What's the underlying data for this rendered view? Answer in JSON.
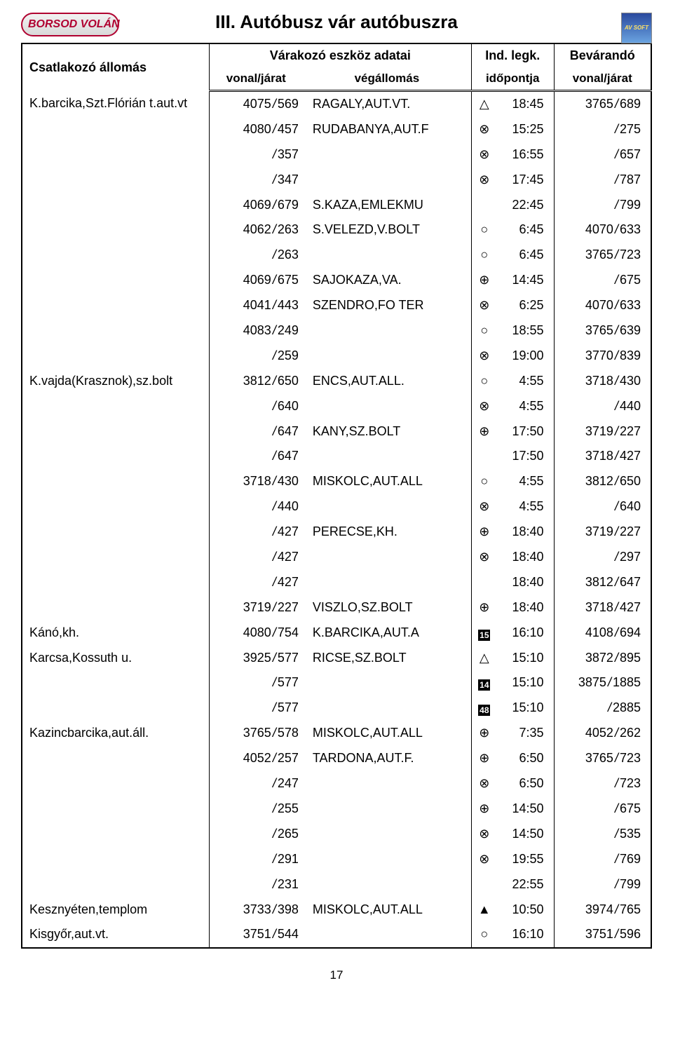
{
  "logo_text": "BORSOD VOLÁN",
  "badge_text": "AV SOFT",
  "page_title": "III. Autóbusz vár autóbuszra",
  "page_number": "17",
  "header": {
    "station": "Csatlakozó állomás",
    "waiting_group": "Várakozó eszköz adatai",
    "line": "vonal/járat",
    "dest": "végállomás",
    "dep_group": "Ind. legk.",
    "dep_sub": "időpontja",
    "await_group": "Bevárandó",
    "await_sub": "vonal/járat"
  },
  "symbols": {
    "triangle_open": "△",
    "circle_x": "⊗",
    "circle_open": "○",
    "circle_plus": "⊕",
    "triangle_filled": "▲"
  },
  "rows": [
    {
      "station": "K.barcika,Szt.Flórián t.aut.vt",
      "l1a": "4075",
      "l1b": "569",
      "dest": "RAGALY,AUT.VT.",
      "sym": "triangle_open",
      "time": "18:45",
      "l2a": "3765",
      "l2b": "689"
    },
    {
      "station": "",
      "l1a": "4080",
      "l1b": "457",
      "dest": "RUDABANYA,AUT.F",
      "sym": "circle_x",
      "time": "15:25",
      "l2a": "",
      "l2b": "275"
    },
    {
      "station": "",
      "l1a": "",
      "l1b": "357",
      "dest": "",
      "sym": "circle_x",
      "time": "16:55",
      "l2a": "",
      "l2b": "657"
    },
    {
      "station": "",
      "l1a": "",
      "l1b": "347",
      "dest": "",
      "sym": "circle_x",
      "time": "17:45",
      "l2a": "",
      "l2b": "787"
    },
    {
      "station": "",
      "l1a": "4069",
      "l1b": "679",
      "dest": "S.KAZA,EMLEKMU",
      "sym": "",
      "time": "22:45",
      "l2a": "",
      "l2b": "799"
    },
    {
      "station": "",
      "l1a": "4062",
      "l1b": "263",
      "dest": "S.VELEZD,V.BOLT",
      "sym": "circle_open",
      "time": "6:45",
      "l2a": "4070",
      "l2b": "633"
    },
    {
      "station": "",
      "l1a": "",
      "l1b": "263",
      "dest": "",
      "sym": "circle_open",
      "time": "6:45",
      "l2a": "3765",
      "l2b": "723"
    },
    {
      "station": "",
      "l1a": "4069",
      "l1b": "675",
      "dest": "SAJOKAZA,VA.",
      "sym": "circle_plus",
      "time": "14:45",
      "l2a": "",
      "l2b": "675"
    },
    {
      "station": "",
      "l1a": "4041",
      "l1b": "443",
      "dest": "SZENDRO,FO TER",
      "sym": "circle_x",
      "time": "6:25",
      "l2a": "4070",
      "l2b": "633"
    },
    {
      "station": "",
      "l1a": "4083",
      "l1b": "249",
      "dest": "",
      "sym": "circle_open",
      "time": "18:55",
      "l2a": "3765",
      "l2b": "639"
    },
    {
      "station": "",
      "l1a": "",
      "l1b": "259",
      "dest": "",
      "sym": "circle_x",
      "time": "19:00",
      "l2a": "3770",
      "l2b": "839"
    },
    {
      "station": "K.vajda(Krasznok),sz.bolt",
      "l1a": "3812",
      "l1b": "650",
      "dest": "ENCS,AUT.ALL.",
      "sym": "circle_open",
      "time": "4:55",
      "l2a": "3718",
      "l2b": "430"
    },
    {
      "station": "",
      "l1a": "",
      "l1b": "640",
      "dest": "",
      "sym": "circle_x",
      "time": "4:55",
      "l2a": "",
      "l2b": "440"
    },
    {
      "station": "",
      "l1a": "",
      "l1b": "647",
      "dest": "KANY,SZ.BOLT",
      "sym": "circle_plus",
      "time": "17:50",
      "l2a": "3719",
      "l2b": "227"
    },
    {
      "station": "",
      "l1a": "",
      "l1b": "647",
      "dest": "",
      "sym": "",
      "time": "17:50",
      "l2a": "3718",
      "l2b": "427"
    },
    {
      "station": "",
      "l1a": "3718",
      "l1b": "430",
      "dest": "MISKOLC,AUT.ALL",
      "sym": "circle_open",
      "time": "4:55",
      "l2a": "3812",
      "l2b": "650"
    },
    {
      "station": "",
      "l1a": "",
      "l1b": "440",
      "dest": "",
      "sym": "circle_x",
      "time": "4:55",
      "l2a": "",
      "l2b": "640"
    },
    {
      "station": "",
      "l1a": "",
      "l1b": "427",
      "dest": "PERECSE,KH.",
      "sym": "circle_plus",
      "time": "18:40",
      "l2a": "3719",
      "l2b": "227"
    },
    {
      "station": "",
      "l1a": "",
      "l1b": "427",
      "dest": "",
      "sym": "circle_x",
      "time": "18:40",
      "l2a": "",
      "l2b": "297"
    },
    {
      "station": "",
      "l1a": "",
      "l1b": "427",
      "dest": "",
      "sym": "",
      "time": "18:40",
      "l2a": "3812",
      "l2b": "647"
    },
    {
      "station": "",
      "l1a": "3719",
      "l1b": "227",
      "dest": "VISZLO,SZ.BOLT",
      "sym": "circle_plus",
      "time": "18:40",
      "l2a": "3718",
      "l2b": "427"
    },
    {
      "station": "Kánó,kh.",
      "l1a": "4080",
      "l1b": "754",
      "dest": "K.BARCIKA,AUT.A",
      "sym": "box:15",
      "time": "16:10",
      "l2a": "4108",
      "l2b": "694"
    },
    {
      "station": "Karcsa,Kossuth u.",
      "l1a": "3925",
      "l1b": "577",
      "dest": "RICSE,SZ.BOLT",
      "sym": "triangle_open",
      "time": "15:10",
      "l2a": "3872",
      "l2b": "895"
    },
    {
      "station": "",
      "l1a": "",
      "l1b": "577",
      "dest": "",
      "sym": "box:14",
      "time": "15:10",
      "l2a": "3875",
      "l2b": "1885"
    },
    {
      "station": "",
      "l1a": "",
      "l1b": "577",
      "dest": "",
      "sym": "box:48",
      "time": "15:10",
      "l2a": "",
      "l2b": "2885"
    },
    {
      "station": "Kazincbarcika,aut.áll.",
      "l1a": "3765",
      "l1b": "578",
      "dest": "MISKOLC,AUT.ALL",
      "sym": "circle_plus",
      "time": "7:35",
      "l2a": "4052",
      "l2b": "262"
    },
    {
      "station": "",
      "l1a": "4052",
      "l1b": "257",
      "dest": "TARDONA,AUT.F.",
      "sym": "circle_plus",
      "time": "6:50",
      "l2a": "3765",
      "l2b": "723"
    },
    {
      "station": "",
      "l1a": "",
      "l1b": "247",
      "dest": "",
      "sym": "circle_x",
      "time": "6:50",
      "l2a": "",
      "l2b": "723"
    },
    {
      "station": "",
      "l1a": "",
      "l1b": "255",
      "dest": "",
      "sym": "circle_plus",
      "time": "14:50",
      "l2a": "",
      "l2b": "675"
    },
    {
      "station": "",
      "l1a": "",
      "l1b": "265",
      "dest": "",
      "sym": "circle_x",
      "time": "14:50",
      "l2a": "",
      "l2b": "535"
    },
    {
      "station": "",
      "l1a": "",
      "l1b": "291",
      "dest": "",
      "sym": "circle_x",
      "time": "19:55",
      "l2a": "",
      "l2b": "769"
    },
    {
      "station": "",
      "l1a": "",
      "l1b": "231",
      "dest": "",
      "sym": "",
      "time": "22:55",
      "l2a": "",
      "l2b": "799"
    },
    {
      "station": "Kesznyéten,templom",
      "l1a": "3733",
      "l1b": "398",
      "dest": "MISKOLC,AUT.ALL",
      "sym": "triangle_filled",
      "time": "10:50",
      "l2a": "3974",
      "l2b": "765"
    },
    {
      "station": "Kisgyőr,aut.vt.",
      "l1a": "3751",
      "l1b": "544",
      "dest": "",
      "sym": "circle_open",
      "time": "16:10",
      "l2a": "3751",
      "l2b": "596"
    }
  ]
}
